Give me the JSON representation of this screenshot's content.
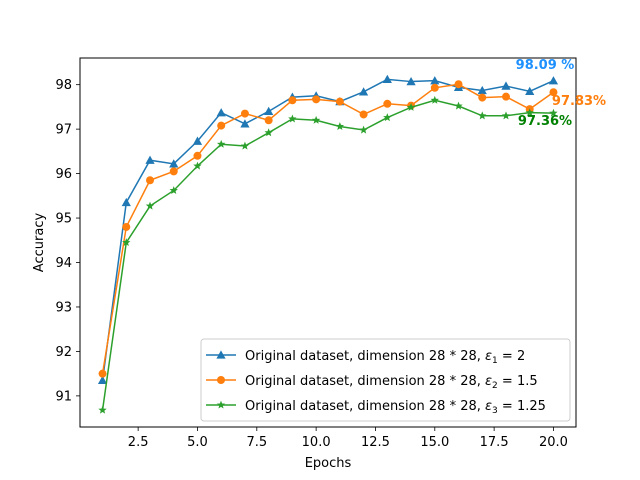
{
  "chart_data": {
    "type": "line",
    "xlabel": "Epochs",
    "ylabel": "Accuracy",
    "xlim": [
      0.05,
      20.95
    ],
    "ylim": [
      90.3,
      98.6
    ],
    "xticks": [
      2.5,
      5.0,
      7.5,
      10.0,
      12.5,
      15.0,
      17.5,
      20.0
    ],
    "xtick_labels": [
      "2.5",
      "5.0",
      "7.5",
      "10.0",
      "12.5",
      "15.0",
      "17.5",
      "20.0"
    ],
    "yticks": [
      91,
      92,
      93,
      94,
      95,
      96,
      97,
      98
    ],
    "ytick_labels": [
      "91",
      "92",
      "93",
      "94",
      "95",
      "96",
      "97",
      "98"
    ],
    "grid": false,
    "legend_position": "lower-right",
    "x": [
      1,
      2,
      3,
      4,
      5,
      6,
      7,
      8,
      9,
      10,
      11,
      12,
      13,
      14,
      15,
      16,
      17,
      18,
      19,
      20
    ],
    "series": [
      {
        "legend_text": "Original dataset, dimension 28 * 28, ",
        "legend_eps_sub": "1",
        "legend_eps_value": " = 2",
        "color": "#1f77b4",
        "marker": "triangle",
        "values": [
          91.35,
          95.35,
          96.3,
          96.22,
          96.73,
          97.37,
          97.12,
          97.4,
          97.72,
          97.75,
          97.62,
          97.84,
          98.12,
          98.07,
          98.09,
          97.94,
          97.87,
          97.97,
          97.85,
          98.09
        ],
        "end_label": "98.09 %",
        "end_label_color": "#1e90ff"
      },
      {
        "legend_text": "Original dataset, dimension 28 * 28, ",
        "legend_eps_sub": "2",
        "legend_eps_value": " = 1.5",
        "color": "#ff7f0e",
        "marker": "circle",
        "values": [
          91.5,
          94.8,
          95.85,
          96.05,
          96.4,
          97.08,
          97.35,
          97.2,
          97.65,
          97.67,
          97.62,
          97.33,
          97.57,
          97.53,
          97.93,
          98.01,
          97.71,
          97.73,
          97.45,
          97.83
        ],
        "end_label": "97.83%",
        "end_label_color": "#ff7f0e"
      },
      {
        "legend_text": "Original dataset, dimension 28 * 28, ",
        "legend_eps_sub": "3",
        "legend_eps_value": " = 1.25",
        "color": "#2ca02c",
        "marker": "star",
        "values": [
          90.68,
          94.45,
          95.27,
          95.62,
          96.17,
          96.66,
          96.62,
          96.92,
          97.23,
          97.2,
          97.06,
          96.98,
          97.26,
          97.49,
          97.65,
          97.52,
          97.3,
          97.3,
          97.37,
          97.36
        ],
        "end_label": "97.36%",
        "end_label_color": "#008000"
      }
    ]
  }
}
